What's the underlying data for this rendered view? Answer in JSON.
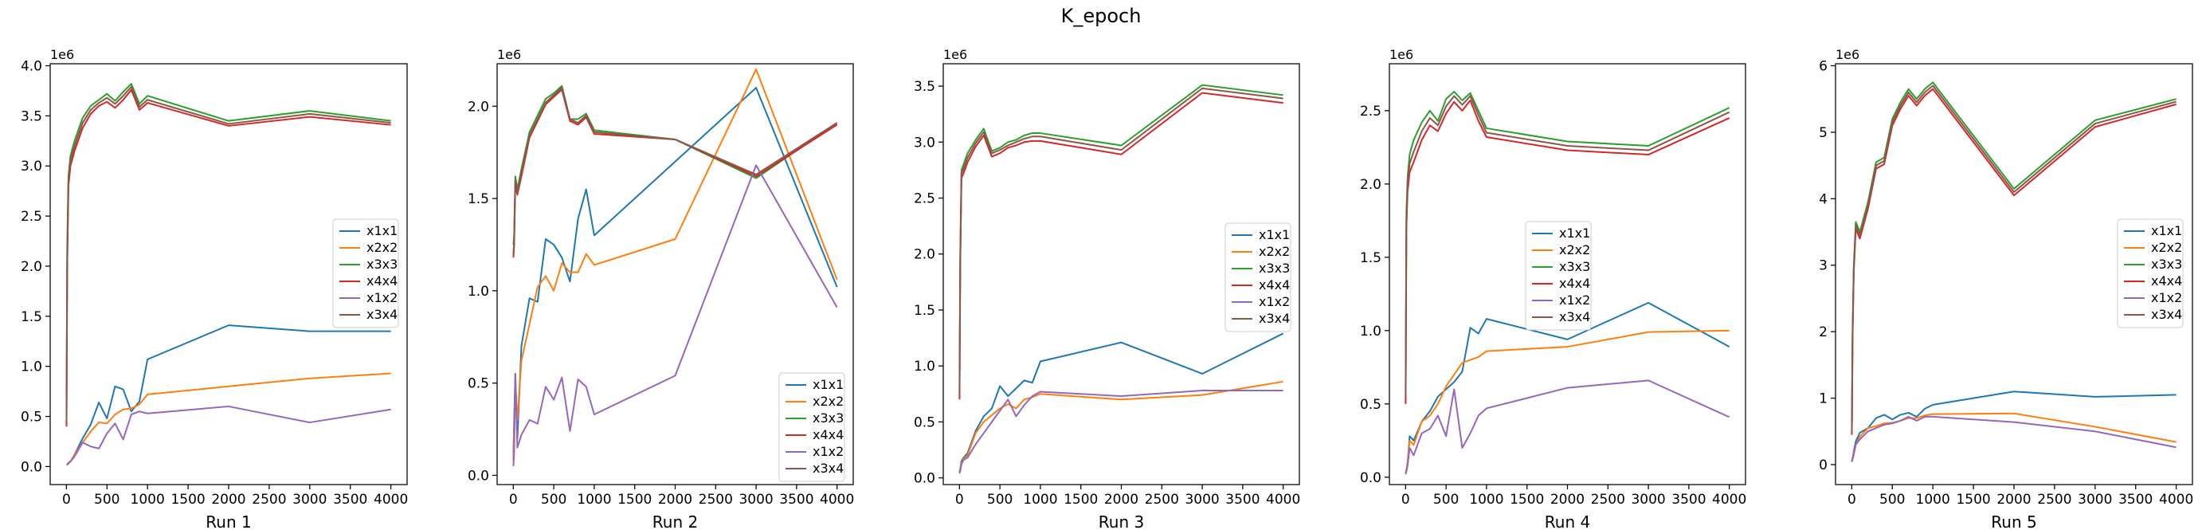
{
  "figure": {
    "suptitle": "K_epoch",
    "y_offset_label": "1e6"
  },
  "colors": {
    "x1x1": "#1f77b4",
    "x2x2": "#ff7f0e",
    "x3x3": "#2ca02c",
    "x4x4": "#d62728",
    "x1x2": "#9467bd",
    "x3x4": "#8c564b"
  },
  "chart_data": [
    {
      "type": "line",
      "xlabel": "Run 1",
      "xlim": [
        -200,
        4200
      ],
      "ylim": [
        -0.18,
        4.02
      ],
      "xticks": [
        0,
        500,
        1000,
        1500,
        2000,
        2500,
        3000,
        3500,
        4000
      ],
      "yticks": [
        0.0,
        0.5,
        1.0,
        1.5,
        2.0,
        2.5,
        3.0,
        3.5,
        4.0
      ],
      "ytick_labels": [
        "0.0",
        "0.5",
        "1.0",
        "1.5",
        "2.0",
        "2.5",
        "3.0",
        "3.5",
        "4.0"
      ],
      "legend": "center-right",
      "x": [
        1,
        10,
        25,
        50,
        100,
        200,
        300,
        400,
        500,
        600,
        700,
        800,
        900,
        1000,
        2000,
        3000,
        4000
      ],
      "series": [
        {
          "name": "x1x1",
          "values": [
            0.02,
            0.02,
            0.04,
            0.05,
            0.12,
            0.28,
            0.42,
            0.64,
            0.48,
            0.8,
            0.77,
            0.55,
            0.65,
            1.07,
            1.41,
            1.35,
            1.35
          ]
        },
        {
          "name": "x2x2",
          "values": [
            0.02,
            0.02,
            0.04,
            0.05,
            0.12,
            0.24,
            0.35,
            0.44,
            0.43,
            0.52,
            0.57,
            0.58,
            0.62,
            0.72,
            0.8,
            0.88,
            0.93
          ]
        },
        {
          "name": "x3x3",
          "values": [
            0.5,
            2.2,
            2.9,
            3.1,
            3.25,
            3.48,
            3.6,
            3.66,
            3.72,
            3.65,
            3.74,
            3.82,
            3.62,
            3.7,
            3.45,
            3.55,
            3.45
          ]
        },
        {
          "name": "x4x4",
          "values": [
            0.4,
            2.0,
            2.8,
            3.0,
            3.15,
            3.38,
            3.52,
            3.6,
            3.64,
            3.58,
            3.66,
            3.76,
            3.56,
            3.63,
            3.4,
            3.49,
            3.41
          ]
        },
        {
          "name": "x1x2",
          "values": [
            0.02,
            0.02,
            0.03,
            0.05,
            0.1,
            0.24,
            0.2,
            0.18,
            0.33,
            0.43,
            0.27,
            0.52,
            0.55,
            0.53,
            0.6,
            0.44,
            0.57
          ]
        },
        {
          "name": "x3x4",
          "values": [
            0.45,
            2.1,
            2.85,
            3.05,
            3.2,
            3.43,
            3.56,
            3.63,
            3.68,
            3.62,
            3.7,
            3.79,
            3.59,
            3.66,
            3.42,
            3.52,
            3.43
          ]
        }
      ]
    },
    {
      "type": "line",
      "xlabel": "Run 2",
      "xlim": [
        -200,
        4200
      ],
      "ylim": [
        -0.05,
        2.23
      ],
      "xticks": [
        0,
        500,
        1000,
        1500,
        2000,
        2500,
        3000,
        3500,
        4000
      ],
      "yticks": [
        0.0,
        0.5,
        1.0,
        1.5,
        2.0
      ],
      "ytick_labels": [
        "0.0",
        "0.5",
        "1.0",
        "1.5",
        "2.0"
      ],
      "legend": "lower-right",
      "x": [
        1,
        10,
        25,
        50,
        100,
        200,
        300,
        400,
        500,
        600,
        700,
        800,
        900,
        1000,
        2000,
        3000,
        4000
      ],
      "series": [
        {
          "name": "x1x1",
          "values": [
            0.1,
            0.3,
            0.55,
            0.2,
            0.7,
            0.96,
            0.94,
            1.28,
            1.25,
            1.18,
            1.05,
            1.39,
            1.55,
            1.3,
            1.7,
            2.1,
            1.02
          ]
        },
        {
          "name": "x2x2",
          "values": [
            0.08,
            0.25,
            0.5,
            0.3,
            0.62,
            0.82,
            1.02,
            1.08,
            1.0,
            1.15,
            1.1,
            1.1,
            1.2,
            1.14,
            1.28,
            2.2,
            1.06
          ]
        },
        {
          "name": "x3x3",
          "values": [
            1.25,
            1.3,
            1.62,
            1.55,
            1.66,
            1.86,
            1.95,
            2.04,
            2.07,
            2.11,
            1.93,
            1.93,
            1.96,
            1.87,
            1.82,
            1.61,
            1.91
          ]
        },
        {
          "name": "x4x4",
          "values": [
            1.18,
            1.24,
            1.58,
            1.52,
            1.62,
            1.83,
            1.92,
            2.01,
            2.05,
            2.09,
            1.92,
            1.9,
            1.94,
            1.85,
            1.82,
            1.62,
            1.9
          ]
        },
        {
          "name": "x1x2",
          "values": [
            0.05,
            0.12,
            0.55,
            0.15,
            0.22,
            0.3,
            0.28,
            0.48,
            0.41,
            0.53,
            0.24,
            0.52,
            0.48,
            0.33,
            0.54,
            1.68,
            0.91
          ]
        },
        {
          "name": "x3x4",
          "values": [
            1.2,
            1.27,
            1.6,
            1.53,
            1.64,
            1.84,
            1.93,
            2.02,
            2.06,
            2.1,
            1.93,
            1.91,
            1.95,
            1.86,
            1.82,
            1.63,
            1.91
          ]
        }
      ]
    },
    {
      "type": "line",
      "xlabel": "Run 3",
      "xlim": [
        -200,
        4200
      ],
      "ylim": [
        -0.06,
        3.7
      ],
      "xticks": [
        0,
        500,
        1000,
        1500,
        2000,
        2500,
        3000,
        3500,
        4000
      ],
      "yticks": [
        0.0,
        0.5,
        1.0,
        1.5,
        2.0,
        2.5,
        3.0,
        3.5
      ],
      "ytick_labels": [
        "0.0",
        "0.5",
        "1.0",
        "1.5",
        "2.0",
        "2.5",
        "3.0",
        "3.5"
      ],
      "legend": "center-right",
      "x": [
        1,
        10,
        25,
        50,
        100,
        200,
        300,
        400,
        500,
        600,
        700,
        800,
        900,
        1000,
        2000,
        3000,
        4000
      ],
      "series": [
        {
          "name": "x1x1",
          "values": [
            0.05,
            0.08,
            0.15,
            0.18,
            0.22,
            0.42,
            0.55,
            0.62,
            0.82,
            0.73,
            0.8,
            0.87,
            0.85,
            1.04,
            1.21,
            0.93,
            1.29
          ]
        },
        {
          "name": "x2x2",
          "values": [
            0.04,
            0.07,
            0.13,
            0.17,
            0.2,
            0.4,
            0.5,
            0.56,
            0.62,
            0.66,
            0.62,
            0.7,
            0.72,
            0.75,
            0.7,
            0.74,
            0.86
          ]
        },
        {
          "name": "x3x3",
          "values": [
            0.8,
            2.0,
            2.75,
            2.8,
            2.9,
            3.02,
            3.12,
            2.92,
            2.95,
            3.0,
            3.02,
            3.06,
            3.08,
            3.08,
            2.97,
            3.51,
            3.42
          ]
        },
        {
          "name": "x4x4",
          "values": [
            0.7,
            1.9,
            2.68,
            2.72,
            2.82,
            2.96,
            3.06,
            2.87,
            2.9,
            2.95,
            2.97,
            3.0,
            3.01,
            3.01,
            2.89,
            3.44,
            3.35
          ]
        },
        {
          "name": "x1x2",
          "values": [
            0.04,
            0.06,
            0.12,
            0.16,
            0.18,
            0.3,
            0.4,
            0.5,
            0.6,
            0.7,
            0.55,
            0.65,
            0.73,
            0.77,
            0.73,
            0.78,
            0.78
          ]
        },
        {
          "name": "x3x4",
          "values": [
            0.75,
            1.95,
            2.72,
            2.76,
            2.86,
            2.99,
            3.09,
            2.9,
            2.93,
            2.97,
            3.0,
            3.03,
            3.05,
            3.05,
            2.93,
            3.48,
            3.39
          ]
        }
      ]
    },
    {
      "type": "line",
      "xlabel": "Run 4",
      "xlim": [
        -200,
        4200
      ],
      "ylim": [
        -0.05,
        2.82
      ],
      "xticks": [
        0,
        500,
        1000,
        1500,
        2000,
        2500,
        3000,
        3500,
        4000
      ],
      "yticks": [
        0.0,
        0.5,
        1.0,
        1.5,
        2.0,
        2.5
      ],
      "ytick_labels": [
        "0.0",
        "0.5",
        "1.0",
        "1.5",
        "2.0",
        "2.5"
      ],
      "legend": "center",
      "x": [
        1,
        10,
        25,
        50,
        100,
        200,
        300,
        400,
        500,
        600,
        700,
        800,
        900,
        1000,
        2000,
        3000,
        4000
      ],
      "series": [
        {
          "name": "x1x1",
          "values": [
            0.03,
            0.05,
            0.1,
            0.28,
            0.25,
            0.38,
            0.45,
            0.55,
            0.6,
            0.65,
            0.72,
            1.02,
            0.98,
            1.08,
            0.94,
            1.19,
            0.89
          ]
        },
        {
          "name": "x2x2",
          "values": [
            0.03,
            0.05,
            0.1,
            0.25,
            0.22,
            0.38,
            0.42,
            0.5,
            0.62,
            0.7,
            0.78,
            0.8,
            0.82,
            0.86,
            0.89,
            0.99,
            1.0
          ]
        },
        {
          "name": "x3x3",
          "values": [
            0.6,
            1.8,
            2.05,
            2.2,
            2.3,
            2.42,
            2.5,
            2.43,
            2.58,
            2.63,
            2.57,
            2.62,
            2.5,
            2.38,
            2.29,
            2.26,
            2.52
          ]
        },
        {
          "name": "x4x4",
          "values": [
            0.5,
            1.7,
            1.95,
            2.08,
            2.15,
            2.3,
            2.4,
            2.36,
            2.48,
            2.56,
            2.5,
            2.57,
            2.43,
            2.32,
            2.23,
            2.2,
            2.45
          ]
        },
        {
          "name": "x1x2",
          "values": [
            0.02,
            0.04,
            0.08,
            0.2,
            0.15,
            0.3,
            0.33,
            0.42,
            0.28,
            0.6,
            0.2,
            0.3,
            0.42,
            0.47,
            0.61,
            0.66,
            0.41
          ]
        },
        {
          "name": "x3x4",
          "values": [
            0.55,
            1.75,
            2.0,
            2.14,
            2.22,
            2.36,
            2.45,
            2.4,
            2.53,
            2.6,
            2.54,
            2.6,
            2.47,
            2.35,
            2.26,
            2.23,
            2.49
          ]
        }
      ]
    },
    {
      "type": "line",
      "xlabel": "Run 5",
      "xlim": [
        -200,
        4200
      ],
      "ylim": [
        -0.3,
        6.03
      ],
      "xticks": [
        0,
        500,
        1000,
        1500,
        2000,
        2500,
        3000,
        3500,
        4000
      ],
      "yticks": [
        0,
        1,
        2,
        3,
        4,
        5,
        6
      ],
      "ytick_labels": [
        "0",
        "1",
        "2",
        "3",
        "4",
        "5",
        "6"
      ],
      "legend": "center-right",
      "x": [
        1,
        10,
        25,
        50,
        100,
        200,
        300,
        400,
        500,
        600,
        700,
        800,
        900,
        1000,
        2000,
        3000,
        4000
      ],
      "series": [
        {
          "name": "x1x1",
          "values": [
            0.05,
            0.1,
            0.2,
            0.35,
            0.48,
            0.55,
            0.7,
            0.75,
            0.68,
            0.75,
            0.78,
            0.72,
            0.84,
            0.9,
            1.1,
            1.02,
            1.05
          ]
        },
        {
          "name": "x2x2",
          "values": [
            0.05,
            0.1,
            0.18,
            0.3,
            0.42,
            0.55,
            0.58,
            0.62,
            0.63,
            0.66,
            0.7,
            0.7,
            0.74,
            0.76,
            0.77,
            0.57,
            0.34
          ]
        },
        {
          "name": "x3x3",
          "values": [
            0.5,
            2.0,
            3.0,
            3.65,
            3.5,
            3.95,
            4.55,
            4.62,
            5.2,
            5.45,
            5.65,
            5.5,
            5.65,
            5.75,
            4.15,
            5.18,
            5.5
          ]
        },
        {
          "name": "x4x4",
          "values": [
            0.45,
            1.9,
            2.9,
            3.55,
            3.4,
            3.85,
            4.45,
            4.52,
            5.1,
            5.35,
            5.55,
            5.4,
            5.55,
            5.65,
            4.05,
            5.08,
            5.42
          ]
        },
        {
          "name": "x1x2",
          "values": [
            0.04,
            0.08,
            0.15,
            0.3,
            0.38,
            0.5,
            0.55,
            0.6,
            0.62,
            0.66,
            0.72,
            0.66,
            0.72,
            0.72,
            0.64,
            0.5,
            0.26
          ]
        },
        {
          "name": "x3x4",
          "values": [
            0.48,
            1.95,
            2.95,
            3.6,
            3.45,
            3.9,
            4.5,
            4.57,
            5.15,
            5.4,
            5.6,
            5.45,
            5.6,
            5.7,
            4.1,
            5.13,
            5.46
          ]
        }
      ]
    }
  ]
}
